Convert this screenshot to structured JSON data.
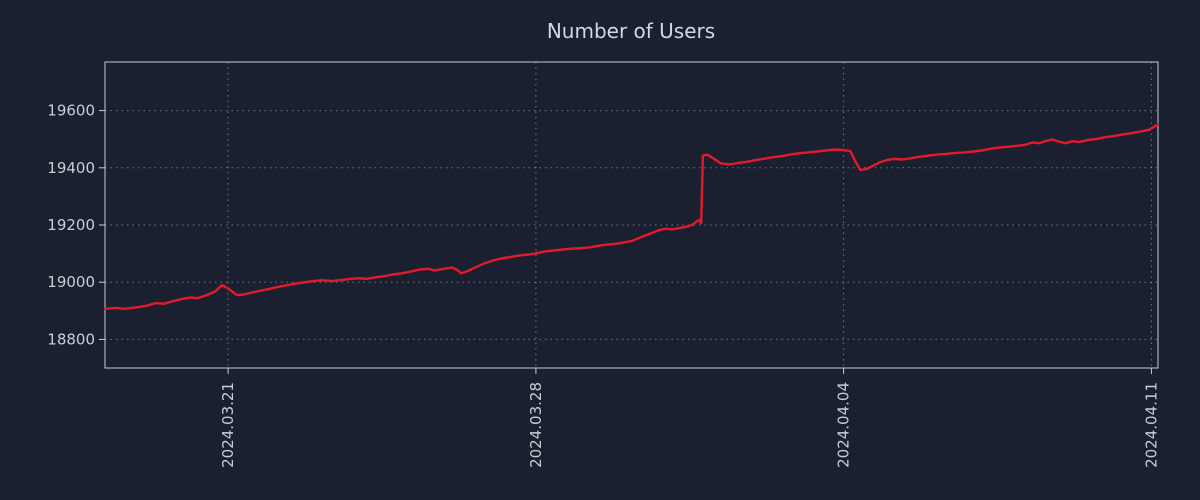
{
  "title": "Number of Users",
  "colors": {
    "background": "#1a2030",
    "line": "#e3192c",
    "text": "#c9cdd4",
    "grid": "#8e939c",
    "border": "#c9cdd4"
  },
  "chart_data": {
    "type": "line",
    "title": "Number of Users",
    "xlabel": "",
    "ylabel": "",
    "grid": true,
    "legend": "none",
    "xlim": [
      0,
      23.95
    ],
    "ylim": [
      18700,
      19770
    ],
    "yticks": [
      18800,
      19000,
      19200,
      19400,
      19600
    ],
    "xticks": [
      {
        "t": 2.8,
        "label": "2024.03.21"
      },
      {
        "t": 9.8,
        "label": "2024.03.28"
      },
      {
        "t": 16.8,
        "label": "2024.04.04"
      },
      {
        "t": 23.8,
        "label": "2024.04.11"
      }
    ],
    "x_axis_note": "x values are days from left edge of plot; labeled ticks are dates",
    "series": [
      {
        "name": "users",
        "color": "#e3192c",
        "points": [
          [
            0.0,
            18907
          ],
          [
            0.25,
            18910
          ],
          [
            0.45,
            18907
          ],
          [
            0.7,
            18912
          ],
          [
            0.95,
            18918
          ],
          [
            1.15,
            18927
          ],
          [
            1.35,
            18925
          ],
          [
            1.55,
            18934
          ],
          [
            1.75,
            18941
          ],
          [
            1.95,
            18947
          ],
          [
            2.1,
            18944
          ],
          [
            2.3,
            18954
          ],
          [
            2.5,
            18967
          ],
          [
            2.66,
            18990
          ],
          [
            2.8,
            18978
          ],
          [
            3.0,
            18955
          ],
          [
            3.15,
            18957
          ],
          [
            3.35,
            18964
          ],
          [
            3.55,
            18971
          ],
          [
            3.75,
            18977
          ],
          [
            3.95,
            18984
          ],
          [
            4.15,
            18990
          ],
          [
            4.35,
            18995
          ],
          [
            4.55,
            19000
          ],
          [
            4.75,
            19004
          ],
          [
            4.95,
            19007
          ],
          [
            5.15,
            19004
          ],
          [
            5.35,
            19007
          ],
          [
            5.55,
            19011
          ],
          [
            5.75,
            19014
          ],
          [
            5.95,
            19012
          ],
          [
            6.15,
            19017
          ],
          [
            6.35,
            19021
          ],
          [
            6.55,
            19027
          ],
          [
            6.75,
            19031
          ],
          [
            6.95,
            19037
          ],
          [
            7.15,
            19044
          ],
          [
            7.35,
            19047
          ],
          [
            7.5,
            19041
          ],
          [
            7.7,
            19047
          ],
          [
            7.9,
            19051
          ],
          [
            8.0,
            19044
          ],
          [
            8.1,
            19031
          ],
          [
            8.25,
            19039
          ],
          [
            8.45,
            19054
          ],
          [
            8.65,
            19067
          ],
          [
            8.85,
            19077
          ],
          [
            9.05,
            19084
          ],
          [
            9.25,
            19089
          ],
          [
            9.45,
            19094
          ],
          [
            9.65,
            19097
          ],
          [
            9.8,
            19101
          ],
          [
            10.0,
            19107
          ],
          [
            10.2,
            19111
          ],
          [
            10.4,
            19114
          ],
          [
            10.6,
            19117
          ],
          [
            10.8,
            19119
          ],
          [
            11.0,
            19121
          ],
          [
            11.2,
            19127
          ],
          [
            11.4,
            19131
          ],
          [
            11.6,
            19134
          ],
          [
            11.8,
            19139
          ],
          [
            12.0,
            19145
          ],
          [
            12.2,
            19158
          ],
          [
            12.4,
            19170
          ],
          [
            12.6,
            19182
          ],
          [
            12.75,
            19187
          ],
          [
            12.9,
            19185
          ],
          [
            13.05,
            19189
          ],
          [
            13.2,
            19193
          ],
          [
            13.35,
            19200
          ],
          [
            13.45,
            19212
          ],
          [
            13.52,
            19218
          ],
          [
            13.56,
            19206
          ],
          [
            13.6,
            19443
          ],
          [
            13.7,
            19446
          ],
          [
            13.85,
            19432
          ],
          [
            14.0,
            19416
          ],
          [
            14.2,
            19412
          ],
          [
            14.4,
            19417
          ],
          [
            14.6,
            19421
          ],
          [
            14.8,
            19427
          ],
          [
            15.0,
            19432
          ],
          [
            15.2,
            19437
          ],
          [
            15.4,
            19441
          ],
          [
            15.6,
            19447
          ],
          [
            15.8,
            19451
          ],
          [
            16.0,
            19454
          ],
          [
            16.2,
            19457
          ],
          [
            16.4,
            19461
          ],
          [
            16.6,
            19464
          ],
          [
            16.8,
            19462
          ],
          [
            16.95,
            19459
          ],
          [
            17.05,
            19428
          ],
          [
            17.18,
            19392
          ],
          [
            17.32,
            19396
          ],
          [
            17.48,
            19408
          ],
          [
            17.62,
            19419
          ],
          [
            17.78,
            19427
          ],
          [
            17.95,
            19431
          ],
          [
            18.15,
            19429
          ],
          [
            18.35,
            19434
          ],
          [
            18.55,
            19439
          ],
          [
            18.75,
            19443
          ],
          [
            18.95,
            19447
          ],
          [
            19.15,
            19449
          ],
          [
            19.35,
            19452
          ],
          [
            19.55,
            19454
          ],
          [
            19.75,
            19457
          ],
          [
            19.95,
            19461
          ],
          [
            20.15,
            19467
          ],
          [
            20.35,
            19471
          ],
          [
            20.55,
            19474
          ],
          [
            20.75,
            19477
          ],
          [
            20.95,
            19481
          ],
          [
            21.1,
            19489
          ],
          [
            21.25,
            19486
          ],
          [
            21.4,
            19494
          ],
          [
            21.55,
            19499
          ],
          [
            21.7,
            19491
          ],
          [
            21.85,
            19486
          ],
          [
            22.0,
            19493
          ],
          [
            22.15,
            19490
          ],
          [
            22.35,
            19497
          ],
          [
            22.55,
            19501
          ],
          [
            22.75,
            19507
          ],
          [
            22.95,
            19511
          ],
          [
            23.15,
            19517
          ],
          [
            23.35,
            19521
          ],
          [
            23.55,
            19527
          ],
          [
            23.75,
            19533
          ],
          [
            23.95,
            19552
          ]
        ]
      }
    ]
  }
}
